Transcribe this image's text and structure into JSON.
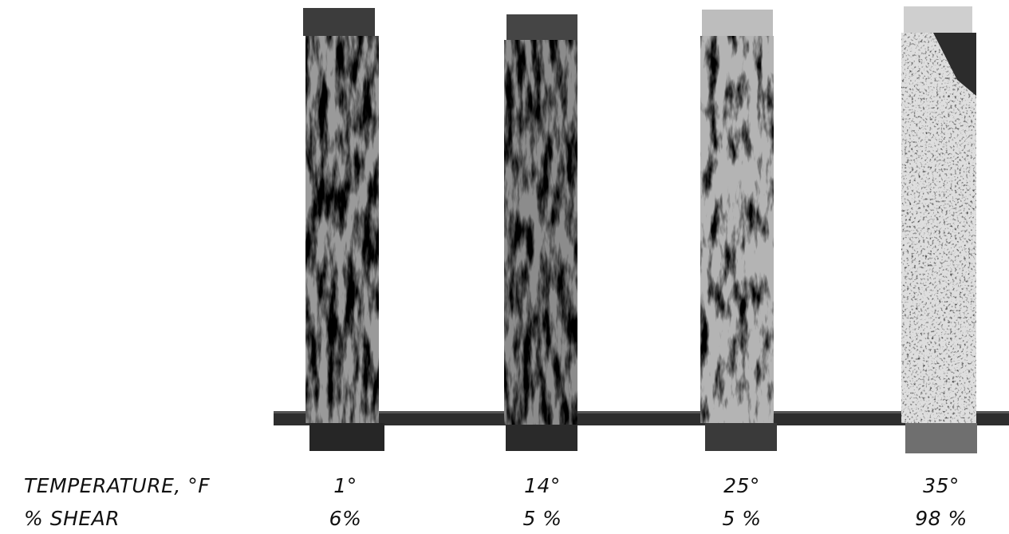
{
  "row_labels": {
    "temperature": "TEMPERATURE, °F",
    "shear": "% SHEAR"
  },
  "specimens": [
    {
      "temperature": "1°",
      "shear": "6%",
      "surface": "dark-granular"
    },
    {
      "temperature": "14°",
      "shear": "5 %",
      "surface": "dark-granular"
    },
    {
      "temperature": "25°",
      "shear": "5 %",
      "surface": "mixed"
    },
    {
      "temperature": "35°",
      "shear": "98 %",
      "surface": "light-smooth"
    }
  ]
}
